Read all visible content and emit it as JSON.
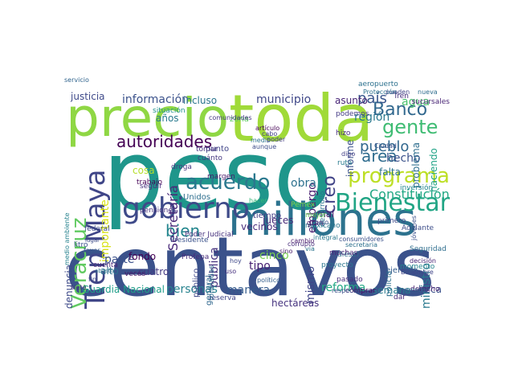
{
  "words": [
    {
      "text": "peso",
      "color": "#1f968b"
    },
    {
      "text": "centavos",
      "color": "#3b528b"
    },
    {
      "text": "toda",
      "color": "#a0da39"
    },
    {
      "text": "precio",
      "color": "#8fd744"
    },
    {
      "text": "millones",
      "color": "#2c728e"
    },
    {
      "text": "gobierno",
      "color": "#3e4a89"
    },
    {
      "text": "Bienestar",
      "color": "#21a585"
    },
    {
      "text": "Tren Maya",
      "color": "#404688"
    },
    {
      "text": "Veracruz",
      "color": "#60ca60"
    },
    {
      "text": "programa",
      "color": "#bddf26"
    },
    {
      "text": "acuerdo",
      "color": "#2a788e"
    },
    {
      "text": "gente",
      "color": "#3fbc73"
    },
    {
      "text": "Banco",
      "color": "#31688e"
    },
    {
      "text": "autoridades",
      "color": "#440154"
    },
    {
      "text": "área",
      "color": "#2f6c8e"
    },
    {
      "text": "pueblo",
      "color": "#31678e"
    },
    {
      "text": "país",
      "color": "#39568c"
    },
    {
      "text": "Constitución",
      "color": "#22a884"
    },
    {
      "text": "bien",
      "color": "#24868e"
    },
    {
      "text": "reforma",
      "color": "#22a785"
    },
    {
      "text": "información",
      "color": "#3b528b"
    },
    {
      "text": "municipio",
      "color": "#3f4788"
    },
    {
      "text": "región",
      "color": "#2a788e"
    },
    {
      "text": "agua",
      "color": "#4ac16d"
    },
    {
      "text": "Secretaría",
      "color": "#482878"
    },
    {
      "text": "importante",
      "color": "#d8e219"
    },
    {
      "text": "hecho",
      "color": "#3b528b"
    },
    {
      "text": "creo",
      "color": "#414487"
    },
    {
      "text": "embargo",
      "color": "#481f70"
    },
    {
      "text": "obra",
      "color": "#2d718e"
    },
    {
      "text": "pública",
      "color": "#46327e"
    },
    {
      "text": "parte",
      "color": "#3b518b"
    },
    {
      "text": "cinco",
      "color": "#7ad151"
    },
    {
      "text": "personas",
      "color": "#26828e"
    },
    {
      "text": "justicia",
      "color": "#3e4989"
    },
    {
      "text": "Guardia Nacional",
      "color": "#1f9e89"
    },
    {
      "text": "ministro",
      "color": "#29798e"
    },
    {
      "text": "mismo",
      "color": "#404588"
    },
    {
      "text": "tipo",
      "color": "#482173"
    },
    {
      "text": "manera",
      "color": "#365c8d"
    },
    {
      "text": "hectáreas",
      "color": "#46337f"
    },
    {
      "text": "semana",
      "color": "#297b8e"
    },
    {
      "text": "beca",
      "color": "#3b518b"
    },
    {
      "text": "fondo",
      "color": "#440154"
    },
    {
      "text": "incluso",
      "color": "#2b758e"
    },
    {
      "text": "años",
      "color": "#297a8e"
    },
    {
      "text": "asunto",
      "color": "#482576"
    },
    {
      "text": "cosa",
      "color": "#b5de2b"
    },
    {
      "text": "alto",
      "color": "#2d708e"
    },
    {
      "text": "cuatro",
      "color": "#443a83"
    },
    {
      "text": "denuncia",
      "color": "#3e4a89"
    },
    {
      "text": "vecinos",
      "color": "#472d7b"
    },
    {
      "text": "jueces",
      "color": "#472c7a"
    },
    {
      "text": "falta",
      "color": "#2c738e"
    },
    {
      "text": "mal",
      "color": "#481c6e"
    },
    {
      "text": "problema",
      "color": "#2e6e8e"
    },
    {
      "text": "haciendo",
      "color": "#20a386"
    },
    {
      "text": "informe",
      "color": "#3b518b"
    },
    {
      "text": "Unidos",
      "color": "#2e6f8e"
    },
    {
      "text": "zona",
      "color": "#5ec962"
    },
    {
      "text": "punto",
      "color": "#404588"
    },
    {
      "text": "Poder Judicial",
      "color": "#46317e"
    },
    {
      "text": "general",
      "color": "#31688e"
    },
    {
      "text": "público",
      "color": "#3f4889"
    },
    {
      "text": "ejemplo",
      "color": "#365d8d"
    },
    {
      "text": "policía",
      "color": "#2d708e"
    },
    {
      "text": "Seguridad",
      "color": "#2e6e8e"
    },
    {
      "text": "desarrollo",
      "color": "#2b758e"
    },
    {
      "text": "veces",
      "color": "#471365"
    },
    {
      "text": "trabajo",
      "color": "#440154"
    },
    {
      "text": "situación",
      "color": "#21918c"
    },
    {
      "text": "Profepa",
      "color": "#472a7a"
    },
    {
      "text": "margen",
      "color": "#48186a"
    },
    {
      "text": "Presidente",
      "color": "#3b528b"
    },
    {
      "text": "mexicano",
      "color": "#2a778e"
    },
    {
      "text": "hizo",
      "color": "#472c7a"
    },
    {
      "text": "podemos",
      "color": "#443b84"
    },
    {
      "text": "gran",
      "color": "#471365"
    },
    {
      "text": "pasado",
      "color": "#472d7b"
    },
    {
      "text": "cuenta",
      "color": "#482677"
    },
    {
      "text": "reserva",
      "color": "#404588"
    },
    {
      "text": "diésel",
      "color": "#2d708e"
    },
    {
      "text": "derecho",
      "color": "#481f70"
    },
    {
      "text": "comprar",
      "color": "#471063"
    },
    {
      "text": "tiempo",
      "color": "#433e85"
    },
    {
      "text": "sucursales",
      "color": "#482475"
    },
    {
      "text": "Tren",
      "color": "#46307e"
    },
    {
      "text": "pensiones",
      "color": "#46327e"
    },
    {
      "text": "medio ambiente",
      "color": "#26828e"
    },
    {
      "text": "litro",
      "color": "#3b528b"
    },
    {
      "text": "droga",
      "color": "#453882"
    },
    {
      "text": "seguir",
      "color": "#472f7d"
    },
    {
      "text": "tomar",
      "color": "#46327e"
    },
    {
      "text": "cuánto",
      "color": "#453781"
    },
    {
      "text": "toneladas",
      "color": "#2f6c8e"
    },
    {
      "text": "federal",
      "color": "#3d4d8a"
    },
    {
      "text": "momento",
      "color": "#25848e"
    },
    {
      "text": "proyecto",
      "color": "#2a768e"
    },
    {
      "text": "ruta",
      "color": "#297b8e"
    },
    {
      "text": "aeropuerto",
      "color": "#2d718e"
    },
    {
      "text": "primero",
      "color": "#3e4989"
    },
    {
      "text": "inversión",
      "color": "#24878e"
    },
    {
      "text": "Adelante",
      "color": "#3d4e8a"
    },
    {
      "text": "dar",
      "color": "#482878"
    },
    {
      "text": "integral",
      "color": "#2a788e"
    },
    {
      "text": "respecto",
      "color": "#3c4f8a"
    },
    {
      "text": "muchas",
      "color": "#482374"
    },
    {
      "text": "mejor",
      "color": "#6ccd5a"
    },
    {
      "text": "favor",
      "color": "#375a8c"
    },
    {
      "text": "fin",
      "color": "#3f4788"
    },
    {
      "text": "siete",
      "color": "#46327e"
    },
    {
      "text": "Pemex",
      "color": "#7fd34e"
    },
    {
      "text": "hacer",
      "color": "#35b779"
    },
    {
      "text": "corrupto",
      "color": "#472c7a"
    },
    {
      "text": "cambio",
      "color": "#481a6c"
    },
    {
      "text": "bajo",
      "color": "#3b528b"
    },
    {
      "text": "digo",
      "color": "#423f85"
    },
    {
      "text": "medio",
      "color": "#2c738e"
    },
    {
      "text": "aunque",
      "color": "#3d4d8a"
    },
    {
      "text": "poder",
      "color": "#433d84"
    },
    {
      "text": "cabo",
      "color": "#423f85"
    },
    {
      "text": "pueden",
      "color": "#414287"
    },
    {
      "text": "nueva",
      "color": "#2e6d8e"
    },
    {
      "text": "artículo",
      "color": "#440154"
    },
    {
      "text": "comunidades",
      "color": "#453882"
    },
    {
      "text": "Diciembre",
      "color": "#404588"
    },
    {
      "text": "ingresos",
      "color": "#32658e"
    },
    {
      "text": "secretaria",
      "color": "#2d708e"
    },
    {
      "text": "uso",
      "color": "#46307e"
    },
    {
      "text": "hoy",
      "color": "#3f4889"
    },
    {
      "text": "sino",
      "color": "#481a6c"
    },
    {
      "text": "vía",
      "color": "#2b748e"
    },
    {
      "text": "abasto",
      "color": "#2e6f8e"
    },
    {
      "text": "lugar",
      "color": "#3e4c8a"
    },
    {
      "text": "consumidores",
      "color": "#3b528b"
    },
    {
      "text": "político",
      "color": "#355f8d"
    },
    {
      "text": "jóvenes",
      "color": "#3b518b"
    },
    {
      "text": "Protección",
      "color": "#2c728e"
    },
    {
      "text": "decisión",
      "color": "#482475"
    },
    {
      "text": "Ciudad",
      "color": "#3b528b"
    },
    {
      "text": "servicio",
      "color": "#32658e"
    }
  ]
}
